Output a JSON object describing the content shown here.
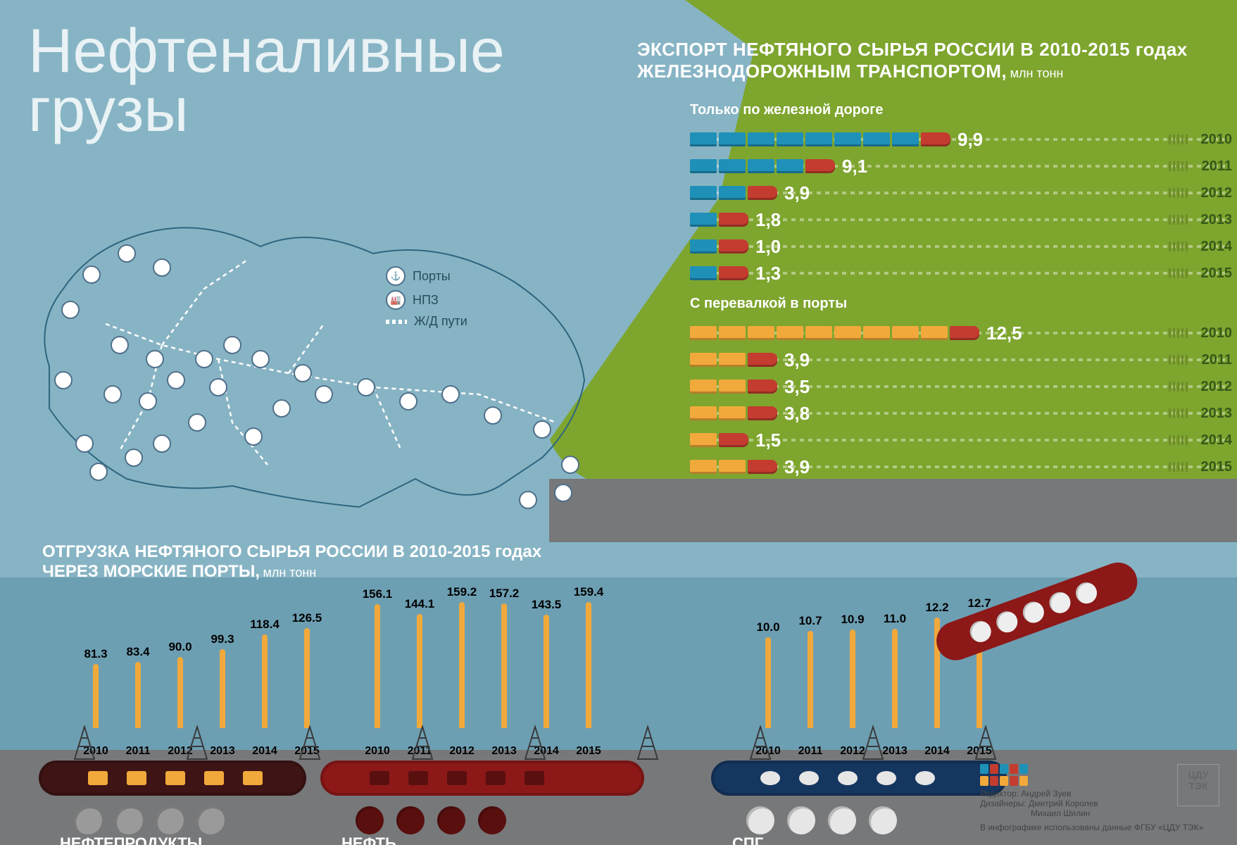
{
  "title": {
    "line1": "Нефтеналивные",
    "line2": "грузы"
  },
  "rail": {
    "heading_line1": "ЭКСПОРТ НЕФТЯНОГО СЫРЬЯ РОССИИ В 2010-2015 годах",
    "heading_line2": "ЖЕЛЕЗНОДОРОЖНЫМ ТРАНСПОРТОМ,",
    "unit": "млн тонн",
    "group1": {
      "title": "Только по железной дороге",
      "car_color": "#1f91b8",
      "loco_color": "#c33c2f",
      "rows": [
        {
          "value": "9,9",
          "year": "2010",
          "cars": 9
        },
        {
          "value": "9,1",
          "year": "2011",
          "cars": 5
        },
        {
          "value": "3,9",
          "year": "2012",
          "cars": 3
        },
        {
          "value": "1,8",
          "year": "2013",
          "cars": 2
        },
        {
          "value": "1,0",
          "year": "2014",
          "cars": 2
        },
        {
          "value": "1,3",
          "year": "2015",
          "cars": 2
        }
      ]
    },
    "group2": {
      "title": "С перевалкой в порты",
      "car_color": "#f2a93b",
      "loco_color": "#c33c2f",
      "rows": [
        {
          "value": "12,5",
          "year": "2010",
          "cars": 10
        },
        {
          "value": "3,9",
          "year": "2011",
          "cars": 3
        },
        {
          "value": "3,5",
          "year": "2012",
          "cars": 3
        },
        {
          "value": "3,8",
          "year": "2013",
          "cars": 3
        },
        {
          "value": "1,5",
          "year": "2014",
          "cars": 2
        },
        {
          "value": "3,9",
          "year": "2015",
          "cars": 3
        }
      ]
    }
  },
  "legend": {
    "ports": "Порты",
    "refinery": "НПЗ",
    "rail": "Ж/Д пути"
  },
  "ports": {
    "heading_line1": "ОТГРУЗКА НЕФТЯНОГО СЫРЬЯ РОССИИ В 2010-2015 годах",
    "heading_line2": "ЧЕРЕЗ МОРСКИЕ ПОРТЫ,",
    "unit": "млн тонн",
    "years": [
      "2010",
      "2011",
      "2012",
      "2013",
      "2014",
      "2015"
    ],
    "groups": [
      {
        "label": "НЕФТЕПРОДУКТЫ",
        "hull_color": "#3e1414",
        "hull_accent": "#f2a93b",
        "tube_color": "#9a9a9a",
        "values": [
          81.3,
          83.4,
          90.0,
          99.3,
          118.4,
          126.5
        ],
        "max_scale": 160
      },
      {
        "label": "НЕФТЬ",
        "hull_color": "#8c1818",
        "hull_accent": "#5a0f0f",
        "tube_color": "#5a0f0f",
        "values": [
          156.1,
          144.1,
          159.2,
          157.2,
          143.5,
          159.4
        ],
        "max_scale": 160
      },
      {
        "label": "СПГ",
        "hull_color": "#15365f",
        "hull_accent": "#e6e6e6",
        "tube_color": "#e6e6e6",
        "values": [
          10.0,
          10.7,
          10.9,
          11.0,
          12.2,
          12.7
        ],
        "max_scale": 14
      }
    ]
  },
  "credits": {
    "editor_label": "Редактор:",
    "editor": "Андрей Зуев",
    "designers_label": "Дизайнеры:",
    "designer1": "Дмитрий Королев",
    "designer2": "Михаил Шилин",
    "footnote": "В инфографике использованы данные ФГБУ «ЦДУ ТЭК»",
    "logo": "ЦДУ ТЭК",
    "block_colors": [
      "#1f91b8",
      "#c33c2f",
      "#1f91b8",
      "#c33c2f",
      "#1f91b8",
      "#f2a93b",
      "#c33c2f",
      "#f2a93b",
      "#c33c2f",
      "#f2a93b"
    ]
  },
  "colors": {
    "water": "#87b4c4",
    "water_dark": "#6d9fb3",
    "land": "#7ea52e",
    "pier": "#76787a",
    "mast": "#f2a93b",
    "map_line": "#2d6680"
  }
}
